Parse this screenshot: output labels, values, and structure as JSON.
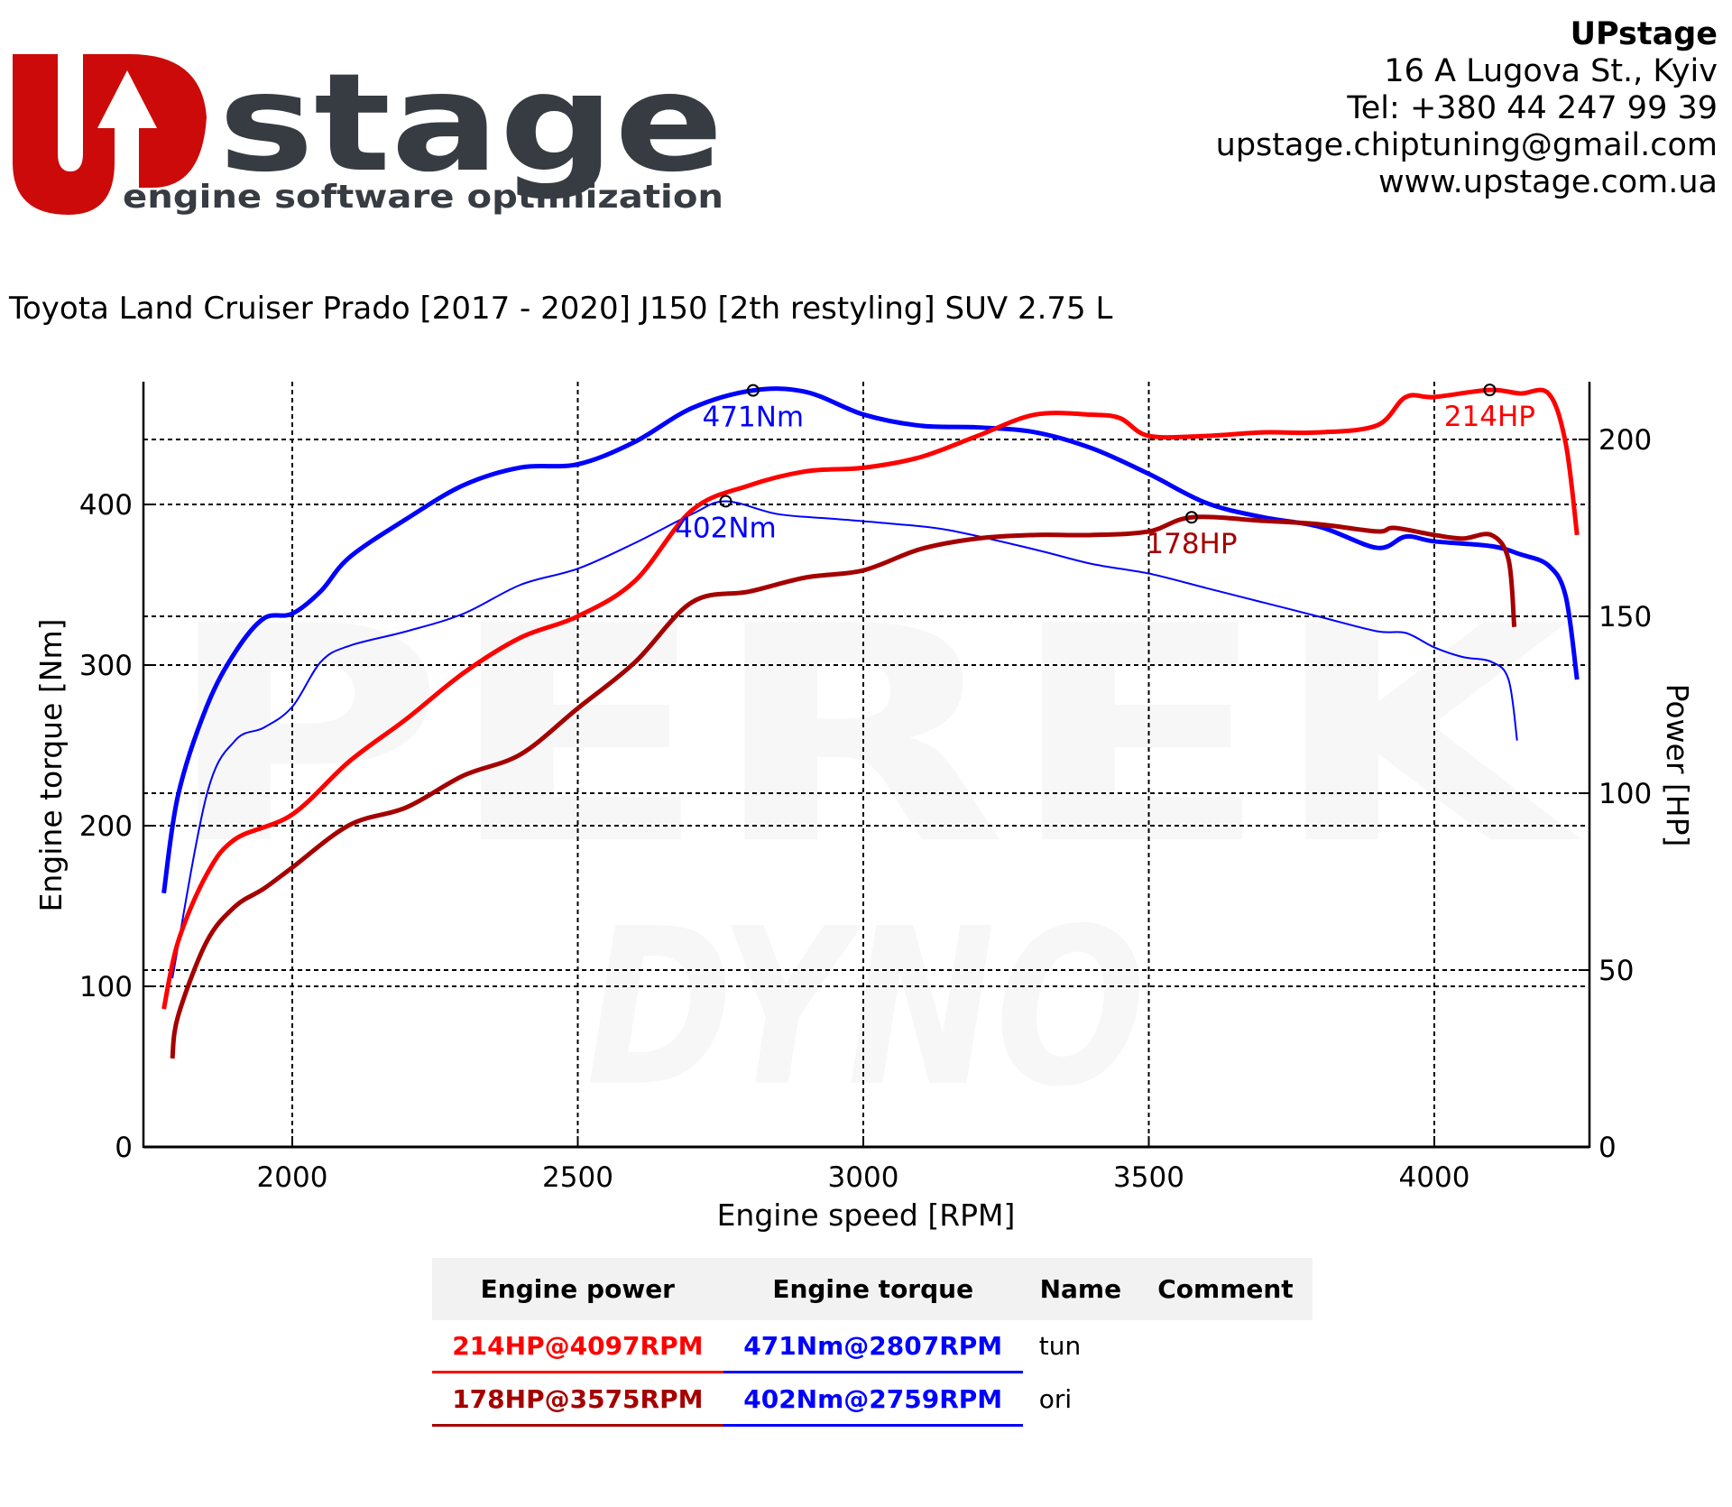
{
  "logo": {
    "word": "stage",
    "tagline": "engine software optimization",
    "brand_red": "#cc0a0a",
    "brand_dark": "#373c42"
  },
  "contact": {
    "name": "UPstage",
    "address": "16 A Lugova St., Kyiv",
    "tel": "Tel: +380 44 247 99 39",
    "email": "upstage.chiptuning@gmail.com",
    "web": "www.upstage.com.ua"
  },
  "vehicle_title": "Toyota Land Cruiser Prado [2017 - 2020] J150 [2th restyling] SUV 2.75 L",
  "watermark": {
    "line1": "PEREK",
    "line2": "DYNO"
  },
  "chart_data": {
    "type": "line",
    "title": "Toyota Land Cruiser Prado [2017 - 2020] J150 [2th restyling] SUV 2.75 L",
    "xlabel": "Engine speed [RPM]",
    "ylabel": "Engine torque [Nm]",
    "y2label": "Power [HP]",
    "xlim": [
      1740,
      4270
    ],
    "ylim": [
      0,
      478
    ],
    "y2lim": [
      0,
      219
    ],
    "xticks": [
      2000,
      2500,
      3000,
      3500,
      4000
    ],
    "yticks": [
      0,
      100,
      200,
      300,
      400
    ],
    "y2ticks": [
      0,
      50,
      100,
      150,
      200
    ],
    "grid": true,
    "series": [
      {
        "name": "tun torque",
        "axis": "left",
        "color": "#0000ff",
        "width": 5,
        "points": [
          [
            1775,
            158
          ],
          [
            1800,
            219
          ],
          [
            1850,
            274
          ],
          [
            1900,
            308
          ],
          [
            1950,
            329
          ],
          [
            2000,
            332
          ],
          [
            2050,
            346
          ],
          [
            2100,
            367
          ],
          [
            2200,
            391
          ],
          [
            2300,
            412
          ],
          [
            2400,
            423
          ],
          [
            2500,
            425
          ],
          [
            2600,
            439
          ],
          [
            2700,
            460
          ],
          [
            2807,
            471
          ],
          [
            2900,
            470
          ],
          [
            3000,
            456
          ],
          [
            3100,
            449
          ],
          [
            3200,
            448
          ],
          [
            3300,
            445
          ],
          [
            3400,
            435
          ],
          [
            3500,
            419
          ],
          [
            3600,
            401
          ],
          [
            3700,
            392
          ],
          [
            3800,
            386
          ],
          [
            3900,
            373
          ],
          [
            3950,
            380
          ],
          [
            4000,
            377
          ],
          [
            4100,
            374
          ],
          [
            4150,
            369
          ],
          [
            4200,
            362
          ],
          [
            4230,
            343
          ],
          [
            4250,
            291
          ]
        ],
        "peak": {
          "rpm": 2807,
          "value": 471,
          "label": "471Nm"
        }
      },
      {
        "name": "ori torque",
        "axis": "left",
        "color": "#0000ff",
        "width": 2,
        "points": [
          [
            1790,
            105
          ],
          [
            1850,
            219
          ],
          [
            1900,
            253
          ],
          [
            1950,
            261
          ],
          [
            2000,
            274
          ],
          [
            2050,
            302
          ],
          [
            2100,
            312
          ],
          [
            2200,
            321
          ],
          [
            2300,
            332
          ],
          [
            2400,
            350
          ],
          [
            2500,
            360
          ],
          [
            2600,
            376
          ],
          [
            2700,
            394
          ],
          [
            2759,
            402
          ],
          [
            2850,
            394
          ],
          [
            2950,
            391
          ],
          [
            3050,
            388
          ],
          [
            3150,
            384
          ],
          [
            3300,
            372
          ],
          [
            3400,
            363
          ],
          [
            3500,
            357
          ],
          [
            3600,
            348
          ],
          [
            3700,
            339
          ],
          [
            3800,
            330
          ],
          [
            3900,
            321
          ],
          [
            3950,
            320
          ],
          [
            4000,
            311
          ],
          [
            4050,
            305
          ],
          [
            4100,
            302
          ],
          [
            4130,
            291
          ],
          [
            4145,
            253
          ]
        ],
        "peak": {
          "rpm": 2759,
          "value": 402,
          "label": "402Nm"
        }
      },
      {
        "name": "tun power",
        "axis": "right",
        "color": "#ff0000",
        "width": 5,
        "points": [
          [
            1775,
            39
          ],
          [
            1800,
            58
          ],
          [
            1850,
            77
          ],
          [
            1900,
            87
          ],
          [
            2000,
            94
          ],
          [
            2100,
            109
          ],
          [
            2200,
            121
          ],
          [
            2300,
            134
          ],
          [
            2400,
            144
          ],
          [
            2500,
            150
          ],
          [
            2600,
            160
          ],
          [
            2700,
            180
          ],
          [
            2800,
            187
          ],
          [
            2900,
            191
          ],
          [
            3000,
            192
          ],
          [
            3100,
            195
          ],
          [
            3200,
            201
          ],
          [
            3300,
            207
          ],
          [
            3400,
            207
          ],
          [
            3450,
            206
          ],
          [
            3500,
            201
          ],
          [
            3600,
            201
          ],
          [
            3700,
            202
          ],
          [
            3800,
            202
          ],
          [
            3900,
            204
          ],
          [
            3950,
            212
          ],
          [
            4000,
            212
          ],
          [
            4097,
            214
          ],
          [
            4150,
            213
          ],
          [
            4200,
            213
          ],
          [
            4230,
            199
          ],
          [
            4250,
            173
          ]
        ],
        "peak": {
          "rpm": 4097,
          "value": 214,
          "label": "214HP"
        }
      },
      {
        "name": "ori power",
        "axis": "right",
        "color": "#a50000",
        "width": 5,
        "points": [
          [
            1790,
            25
          ],
          [
            1800,
            37
          ],
          [
            1850,
            58
          ],
          [
            1900,
            68
          ],
          [
            1950,
            73
          ],
          [
            2000,
            79
          ],
          [
            2100,
            91
          ],
          [
            2200,
            96
          ],
          [
            2300,
            105
          ],
          [
            2400,
            111
          ],
          [
            2500,
            124
          ],
          [
            2600,
            137
          ],
          [
            2700,
            154
          ],
          [
            2800,
            157
          ],
          [
            2900,
            161
          ],
          [
            3000,
            163
          ],
          [
            3100,
            169
          ],
          [
            3200,
            172
          ],
          [
            3300,
            173
          ],
          [
            3400,
            173
          ],
          [
            3500,
            174
          ],
          [
            3575,
            178
          ],
          [
            3700,
            177
          ],
          [
            3800,
            176
          ],
          [
            3900,
            174
          ],
          [
            3930,
            175
          ],
          [
            4000,
            173
          ],
          [
            4050,
            172
          ],
          [
            4100,
            173
          ],
          [
            4130,
            166
          ],
          [
            4140,
            147
          ]
        ],
        "peak": {
          "rpm": 3575,
          "value": 178,
          "label": "178HP"
        }
      }
    ]
  },
  "table": {
    "headers": [
      "Engine power",
      "Engine torque",
      "Name",
      "Comment"
    ],
    "rows": [
      {
        "power": "214HP@4097RPM",
        "torque": "471Nm@2807RPM",
        "name": "tun",
        "comment": "",
        "power_color": "#ff0000",
        "torque_color": "#0000ff"
      },
      {
        "power": "178HP@3575RPM",
        "torque": "402Nm@2759RPM",
        "name": "ori",
        "comment": "",
        "power_color": "#a50000",
        "torque_color": "#0000ff"
      }
    ]
  }
}
